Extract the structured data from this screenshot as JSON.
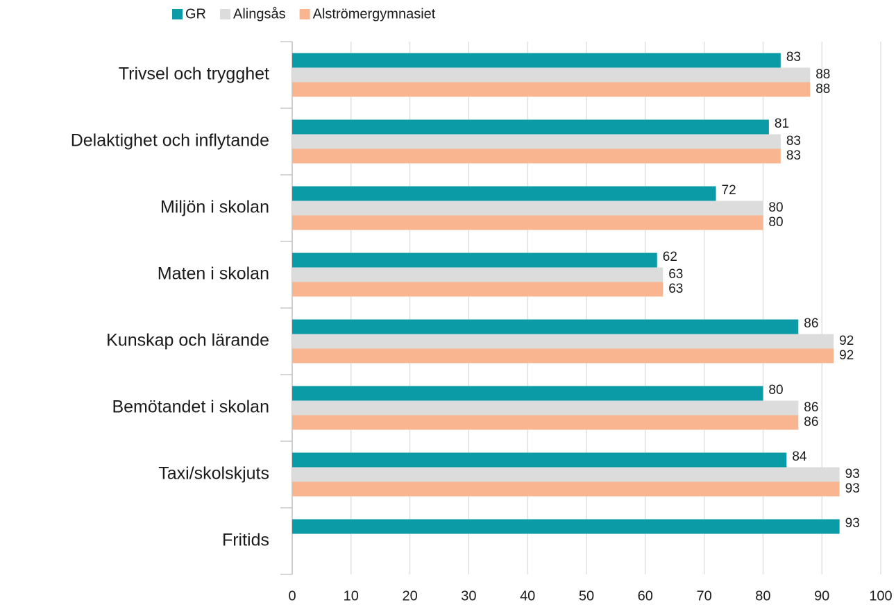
{
  "chart_data": {
    "type": "bar",
    "orientation": "horizontal",
    "categories": [
      "Trivsel och trygghet",
      "Delaktighet och inflytande",
      "Miljön i skolan",
      "Maten i skolan",
      "Kunskap och lärande",
      "Bemötandet i skolan",
      "Taxi/skolskjuts",
      "Fritids"
    ],
    "series": [
      {
        "name": "GR",
        "color": "#0a9ba6",
        "values": [
          83,
          81,
          72,
          62,
          86,
          80,
          84,
          93
        ]
      },
      {
        "name": "Alingsås",
        "color": "#dcdcdc",
        "values": [
          88,
          83,
          80,
          63,
          92,
          86,
          93,
          null
        ]
      },
      {
        "name": "Alströmergymnasiet",
        "color": "#f8b590",
        "values": [
          88,
          83,
          80,
          63,
          92,
          86,
          93,
          null
        ]
      }
    ],
    "xlim": [
      0,
      100
    ],
    "xticks": [
      0,
      10,
      20,
      30,
      40,
      50,
      60,
      70,
      80,
      90,
      100
    ],
    "grid": true,
    "legend": "top"
  }
}
